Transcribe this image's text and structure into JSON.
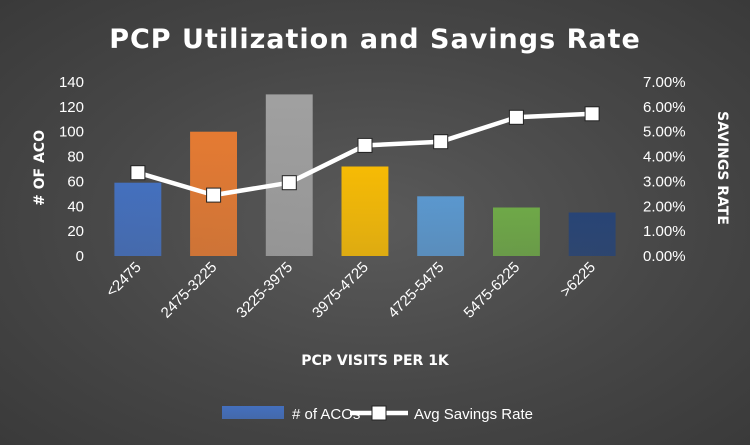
{
  "chart_data": {
    "type": "bar",
    "title": "PCP Utilization and Savings Rate",
    "xlabel": "PCP VISITS PER 1K",
    "ylabel": "# OF ACO",
    "y2label": "SAVINGS RATE",
    "categories": [
      "<2475",
      "2475-3225",
      "3225-3975",
      "3975-4725",
      "4725-5475",
      "5475-6225",
      ">6225"
    ],
    "ylim": [
      0,
      140
    ],
    "yticks": [
      0,
      20,
      40,
      60,
      80,
      100,
      120,
      140
    ],
    "y2lim": [
      0,
      0.07
    ],
    "y2ticks": [
      "0.00%",
      "1.00%",
      "2.00%",
      "3.00%",
      "4.00%",
      "5.00%",
      "6.00%",
      "7.00%"
    ],
    "series": [
      {
        "name": "# of ACOs",
        "type": "bar",
        "axis": "left",
        "values": [
          59,
          100,
          130,
          72,
          48,
          39,
          35
        ],
        "colors": [
          "#4472C4",
          "#ED7D31",
          "#A5A5A5",
          "#FFC000",
          "#5B9BD5",
          "#70AD47",
          "#264478"
        ]
      },
      {
        "name": "Avg Savings Rate",
        "type": "line",
        "axis": "right",
        "values": [
          0.0335,
          0.0245,
          0.0295,
          0.0445,
          0.046,
          0.0558,
          0.0572
        ],
        "color": "#FFFFFF"
      }
    ],
    "legend": {
      "position": "bottom"
    },
    "grid": false
  }
}
